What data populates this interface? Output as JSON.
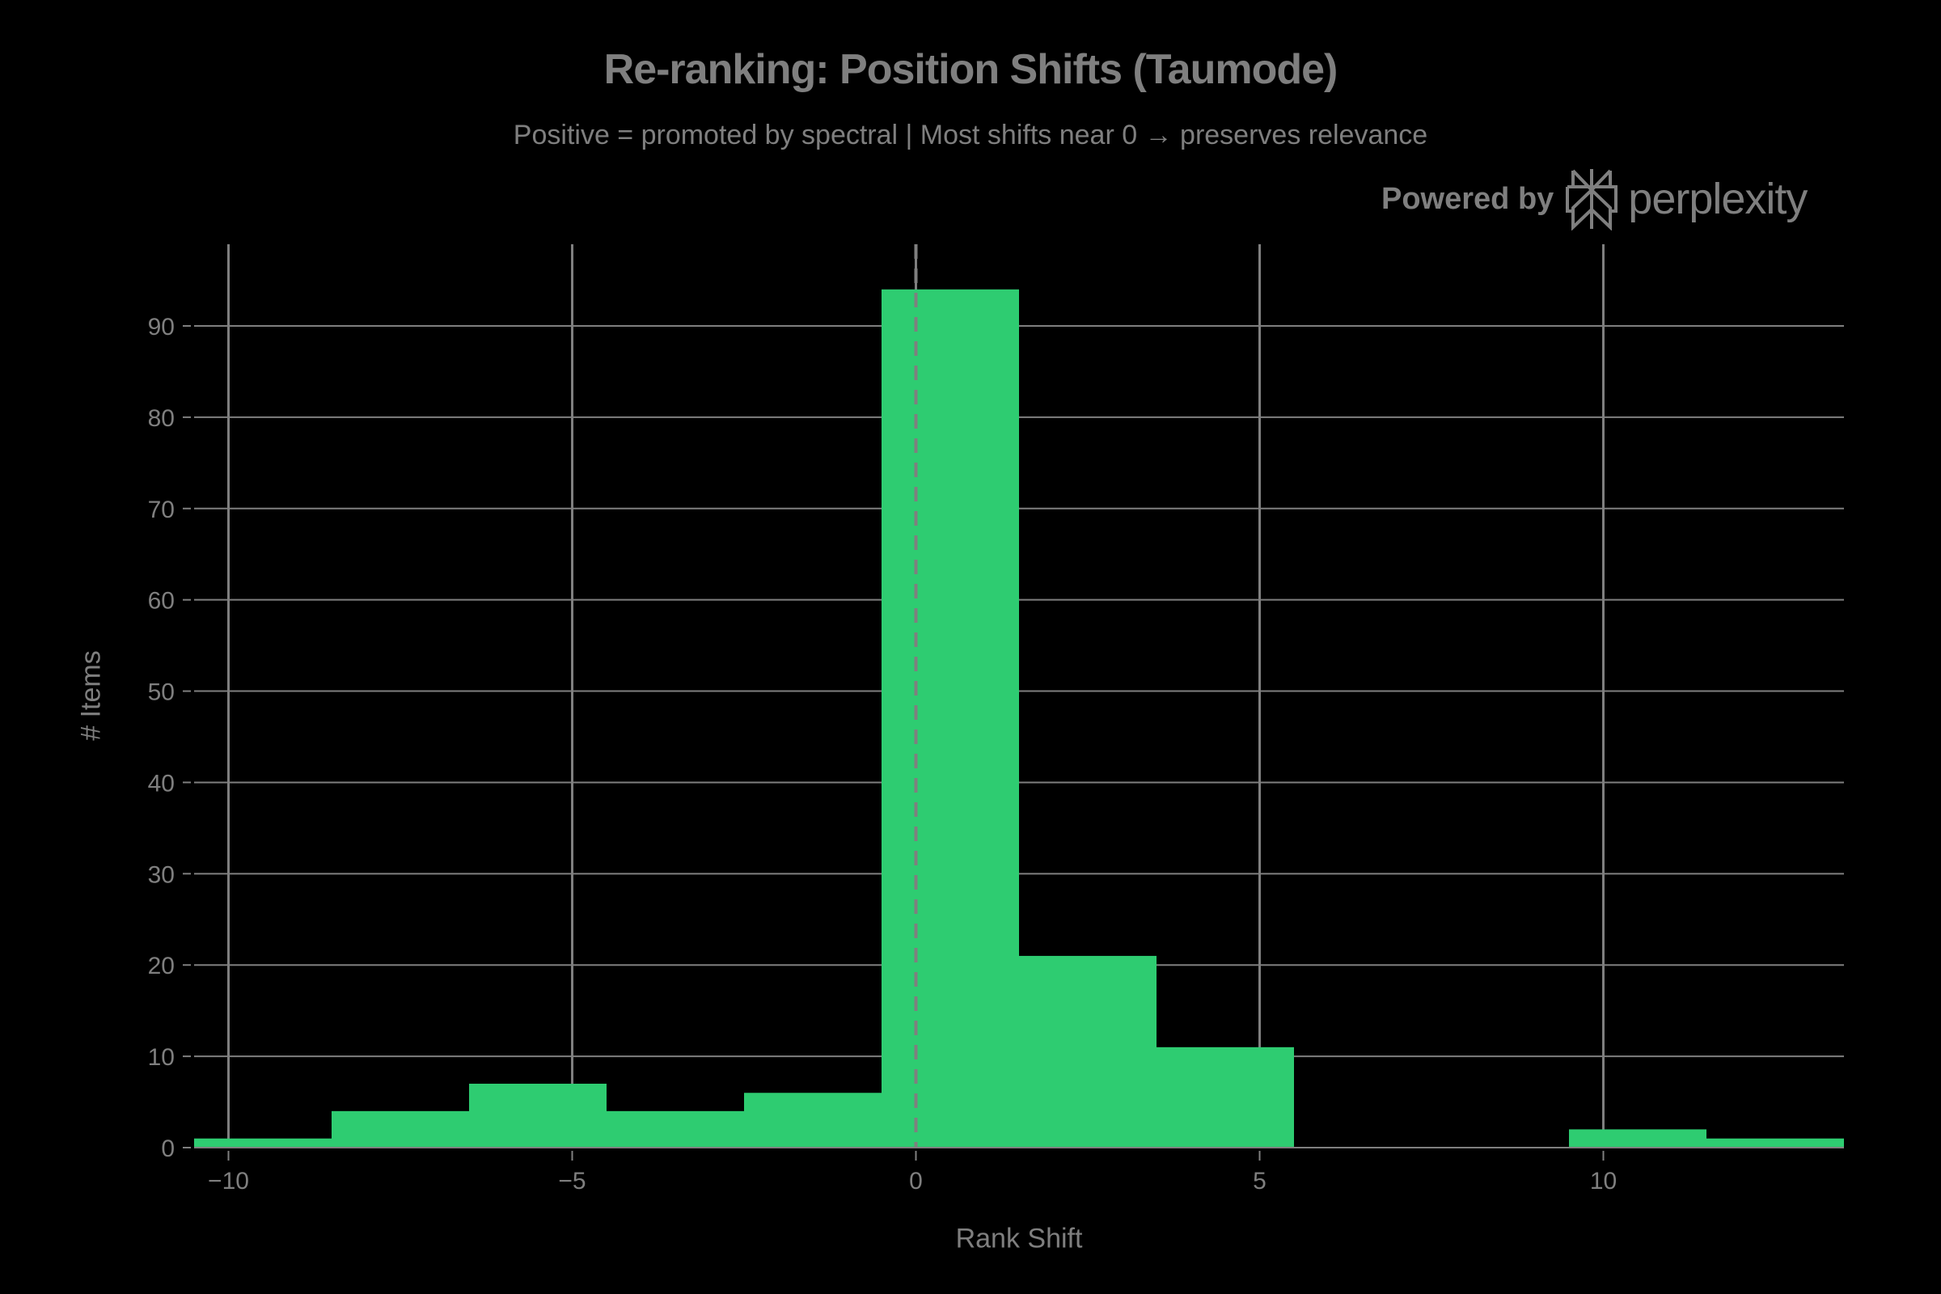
{
  "header": {
    "title": "Re-ranking: Position Shifts (Taumode)",
    "subtitle": "Positive = promoted by spectral | Most shifts near 0 → preserves relevance",
    "powered_by": "Powered by",
    "brand": "perplexity"
  },
  "colors": {
    "bar": "#2ecc71",
    "grid": "#7f7f7f",
    "text": "#7f7f7f",
    "background": "#000000"
  },
  "chart_data": {
    "type": "bar",
    "subtype": "histogram",
    "title": "Re-ranking: Position Shifts (Taumode)",
    "subtitle": "Positive = promoted by spectral | Most shifts near 0 → preserves relevance",
    "xlabel": "Rank Shift",
    "ylabel": "# Items",
    "xlim": [
      -10.5,
      13.5
    ],
    "ylim": [
      0,
      99
    ],
    "x_ticks": [
      -10,
      -5,
      0,
      5,
      10
    ],
    "x_tick_labels": [
      "−10",
      "−5",
      "0",
      "5",
      "10"
    ],
    "y_ticks": [
      0,
      10,
      20,
      30,
      40,
      50,
      60,
      70,
      80,
      90
    ],
    "grid": true,
    "reference_line": {
      "x": 0,
      "style": "dashed"
    },
    "bins": [
      {
        "start": -10.5,
        "end": -8.5,
        "count": 1
      },
      {
        "start": -8.5,
        "end": -6.5,
        "count": 4
      },
      {
        "start": -6.5,
        "end": -4.5,
        "count": 7
      },
      {
        "start": -4.5,
        "end": -2.5,
        "count": 4
      },
      {
        "start": -2.5,
        "end": -0.5,
        "count": 6
      },
      {
        "start": -0.5,
        "end": 1.5,
        "count": 94
      },
      {
        "start": 1.5,
        "end": 3.5,
        "count": 21
      },
      {
        "start": 3.5,
        "end": 5.5,
        "count": 11
      },
      {
        "start": 5.5,
        "end": 7.5,
        "count": 0
      },
      {
        "start": 7.5,
        "end": 9.5,
        "count": 0
      },
      {
        "start": 9.5,
        "end": 11.5,
        "count": 2
      },
      {
        "start": 11.5,
        "end": 13.5,
        "count": 1
      }
    ],
    "categories": [
      "-9.5",
      "-7.5",
      "-5.5",
      "-3.5",
      "-1.5",
      "0.5",
      "2.5",
      "4.5",
      "6.5",
      "8.5",
      "10.5",
      "12.5"
    ],
    "values": [
      1,
      4,
      7,
      4,
      6,
      94,
      21,
      11,
      0,
      0,
      2,
      1
    ]
  }
}
